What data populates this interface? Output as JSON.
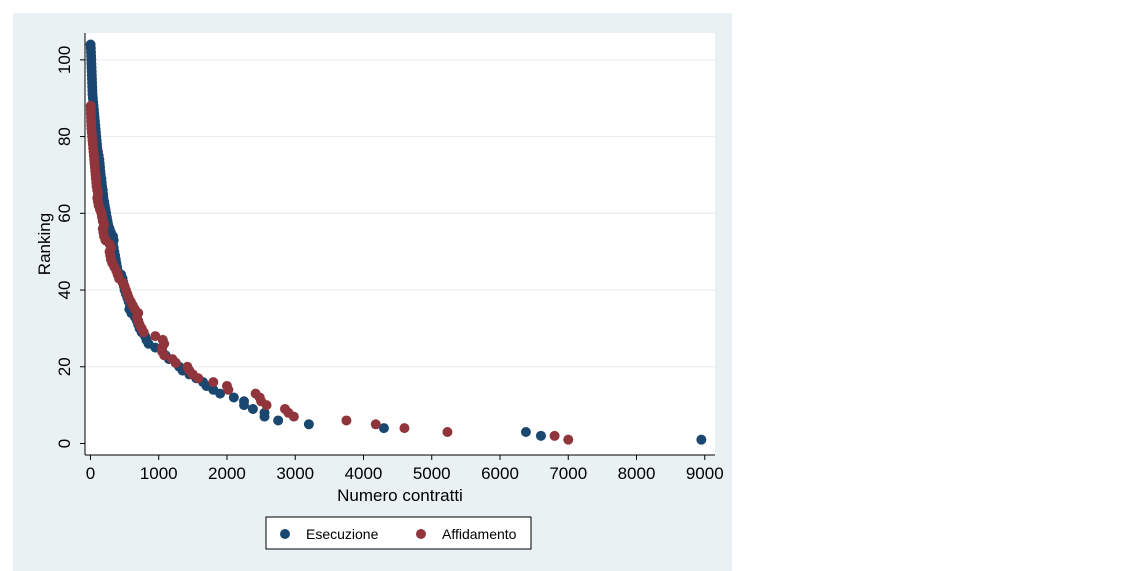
{
  "chart_data": {
    "type": "scatter",
    "title": "",
    "xlabel": "Numero contratti",
    "ylabel": "Ranking",
    "xlim": [
      -80,
      9150
    ],
    "ylim": [
      -3,
      107
    ],
    "xticks": [
      0,
      1000,
      2000,
      3000,
      4000,
      5000,
      6000,
      7000,
      8000,
      9000
    ],
    "yticks": [
      0,
      20,
      40,
      60,
      80,
      100
    ],
    "grid": true,
    "legend_position": "bottom",
    "colors": {
      "Esecuzione": "#1a476f",
      "Affidamento": "#90353b",
      "frame_bg": "#e9f1f3",
      "plot_bg": "#ffffff"
    },
    "series": [
      {
        "name": "Esecuzione",
        "points": [
          [
            8950,
            1
          ],
          [
            6600,
            2
          ],
          [
            6380,
            3
          ],
          [
            4300,
            4
          ],
          [
            3200,
            5
          ],
          [
            2750,
            6
          ],
          [
            2550,
            7
          ],
          [
            2550,
            8
          ],
          [
            2380,
            9
          ],
          [
            2250,
            10
          ],
          [
            2250,
            11
          ],
          [
            2100,
            12
          ],
          [
            1900,
            13
          ],
          [
            1800,
            14
          ],
          [
            1700,
            15
          ],
          [
            1650,
            16
          ],
          [
            1550,
            17
          ],
          [
            1450,
            18
          ],
          [
            1350,
            19
          ],
          [
            1300,
            20
          ],
          [
            1250,
            21
          ],
          [
            1150,
            22
          ],
          [
            1100,
            23
          ],
          [
            1050,
            24
          ],
          [
            950,
            25
          ],
          [
            850,
            26
          ],
          [
            820,
            27
          ],
          [
            800,
            28
          ],
          [
            750,
            29
          ],
          [
            720,
            30
          ],
          [
            700,
            31
          ],
          [
            680,
            32
          ],
          [
            650,
            33
          ],
          [
            600,
            34
          ],
          [
            570,
            35
          ],
          [
            580,
            36
          ],
          [
            560,
            37
          ],
          [
            540,
            38
          ],
          [
            520,
            39
          ],
          [
            500,
            40
          ],
          [
            490,
            41
          ],
          [
            480,
            42
          ],
          [
            470,
            43
          ],
          [
            450,
            44
          ],
          [
            400,
            45
          ],
          [
            390,
            46
          ],
          [
            380,
            47
          ],
          [
            370,
            48
          ],
          [
            360,
            49
          ],
          [
            350,
            50
          ],
          [
            340,
            51
          ],
          [
            330,
            52
          ],
          [
            340,
            53
          ],
          [
            330,
            54
          ],
          [
            300,
            55
          ],
          [
            280,
            56
          ],
          [
            260,
            57
          ],
          [
            250,
            58
          ],
          [
            240,
            59
          ],
          [
            230,
            60
          ],
          [
            220,
            61
          ],
          [
            210,
            62
          ],
          [
            200,
            63
          ],
          [
            190,
            64
          ],
          [
            185,
            65
          ],
          [
            180,
            66
          ],
          [
            170,
            67
          ],
          [
            165,
            68
          ],
          [
            160,
            69
          ],
          [
            150,
            70
          ],
          [
            145,
            71
          ],
          [
            140,
            72
          ],
          [
            135,
            73
          ],
          [
            130,
            74
          ],
          [
            120,
            75
          ],
          [
            110,
            76
          ],
          [
            100,
            77
          ],
          [
            95,
            78
          ],
          [
            90,
            79
          ],
          [
            85,
            80
          ],
          [
            80,
            81
          ],
          [
            75,
            82
          ],
          [
            70,
            83
          ],
          [
            65,
            84
          ],
          [
            60,
            85
          ],
          [
            55,
            86
          ],
          [
            50,
            87
          ],
          [
            45,
            88
          ],
          [
            40,
            89
          ],
          [
            35,
            90
          ],
          [
            30,
            91
          ],
          [
            28,
            92
          ],
          [
            26,
            93
          ],
          [
            24,
            94
          ],
          [
            22,
            95
          ],
          [
            20,
            96
          ],
          [
            18,
            97
          ],
          [
            16,
            98
          ],
          [
            14,
            99
          ],
          [
            12,
            100
          ],
          [
            10,
            101
          ],
          [
            8,
            102
          ],
          [
            5,
            103
          ],
          [
            2,
            104
          ]
        ]
      },
      {
        "name": "Affidamento",
        "points": [
          [
            7000,
            1
          ],
          [
            6800,
            2
          ],
          [
            5230,
            3
          ],
          [
            4600,
            4
          ],
          [
            4180,
            5
          ],
          [
            3750,
            6
          ],
          [
            2980,
            7
          ],
          [
            2900,
            8
          ],
          [
            2850,
            9
          ],
          [
            2580,
            10
          ],
          [
            2500,
            11
          ],
          [
            2480,
            12
          ],
          [
            2420,
            13
          ],
          [
            2020,
            14
          ],
          [
            2000,
            15
          ],
          [
            1800,
            16
          ],
          [
            1580,
            17
          ],
          [
            1500,
            18
          ],
          [
            1450,
            19
          ],
          [
            1420,
            20
          ],
          [
            1250,
            21
          ],
          [
            1200,
            22
          ],
          [
            1080,
            23
          ],
          [
            1050,
            24
          ],
          [
            1050,
            25
          ],
          [
            1080,
            26
          ],
          [
            1060,
            27
          ],
          [
            950,
            28
          ],
          [
            780,
            29
          ],
          [
            750,
            30
          ],
          [
            720,
            31
          ],
          [
            700,
            32
          ],
          [
            680,
            33
          ],
          [
            700,
            34
          ],
          [
            650,
            35
          ],
          [
            620,
            36
          ],
          [
            590,
            37
          ],
          [
            560,
            38
          ],
          [
            540,
            39
          ],
          [
            520,
            40
          ],
          [
            500,
            41
          ],
          [
            470,
            42
          ],
          [
            420,
            43
          ],
          [
            400,
            44
          ],
          [
            380,
            45
          ],
          [
            350,
            46
          ],
          [
            320,
            47
          ],
          [
            300,
            48
          ],
          [
            290,
            49
          ],
          [
            280,
            50
          ],
          [
            300,
            51
          ],
          [
            280,
            52
          ],
          [
            220,
            53
          ],
          [
            200,
            54
          ],
          [
            190,
            55
          ],
          [
            180,
            56
          ],
          [
            200,
            57
          ],
          [
            180,
            58
          ],
          [
            170,
            59
          ],
          [
            160,
            60
          ],
          [
            140,
            61
          ],
          [
            120,
            62
          ],
          [
            110,
            63
          ],
          [
            100,
            64
          ],
          [
            110,
            65
          ],
          [
            100,
            66
          ],
          [
            90,
            67
          ],
          [
            85,
            68
          ],
          [
            80,
            69
          ],
          [
            75,
            70
          ],
          [
            70,
            71
          ],
          [
            65,
            72
          ],
          [
            60,
            73
          ],
          [
            55,
            74
          ],
          [
            50,
            75
          ],
          [
            45,
            76
          ],
          [
            40,
            77
          ],
          [
            35,
            78
          ],
          [
            30,
            79
          ],
          [
            25,
            80
          ],
          [
            20,
            81
          ],
          [
            15,
            82
          ],
          [
            12,
            83
          ],
          [
            10,
            84
          ],
          [
            8,
            85
          ],
          [
            6,
            86
          ],
          [
            5,
            87
          ],
          [
            4,
            88
          ]
        ]
      }
    ]
  }
}
